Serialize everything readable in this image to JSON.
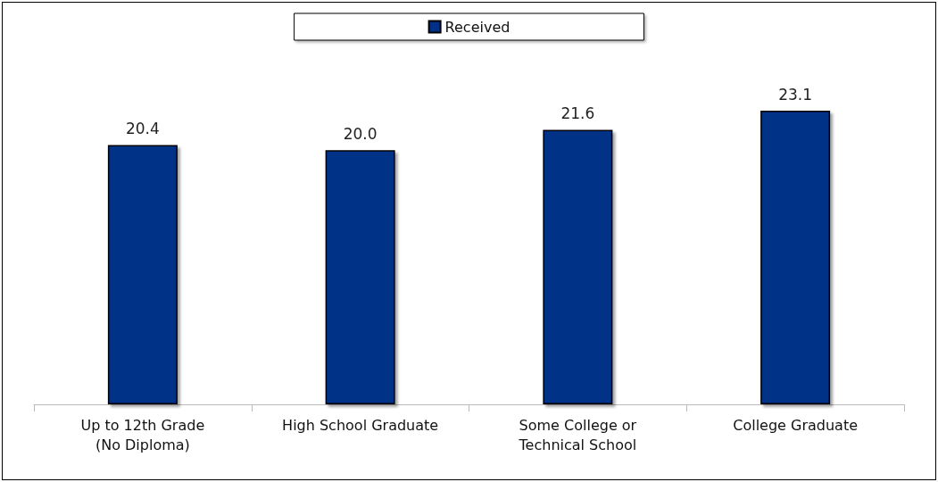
{
  "chart_data": {
    "type": "bar",
    "categories": [
      "Up to 12th Grade\n(No Diploma)",
      "High School Graduate",
      "Some College or\nTechnical School",
      "College Graduate"
    ],
    "series": [
      {
        "name": "Received",
        "color": "#003087",
        "values": [
          20.4,
          20.0,
          21.6,
          23.1
        ],
        "value_labels": [
          "20.4",
          "20.0",
          "21.6",
          "23.1"
        ]
      }
    ],
    "legend": "top"
  }
}
